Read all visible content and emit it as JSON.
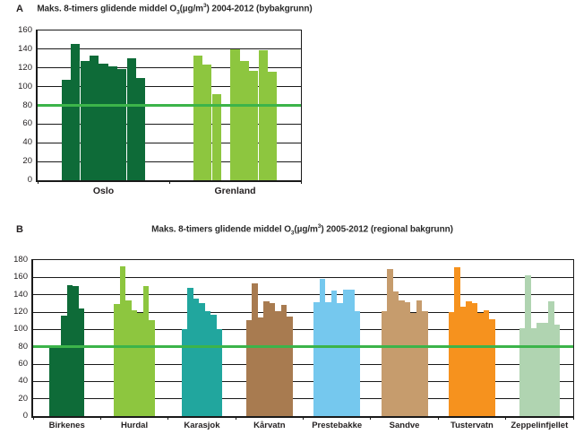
{
  "page": {
    "background": "#ffffff"
  },
  "style": {
    "threshold_color": "#3cb44a",
    "grid_color": "#1a1a1a",
    "text_color": "#231f20"
  },
  "chart_data": [
    {
      "type": "bar",
      "panel_label": "A",
      "title": "Maks. 8-timers glidende middel O3(µg/m3) 2004-2012 (bybakgrunn)",
      "title_parts": {
        "pre": "Maks. 8-timers glidende middel O",
        "sub": "3",
        "mid": "(µg/m",
        "sup": "3",
        "post": ") 2004-2012 (bybakgrunn)"
      },
      "ylim": [
        0,
        160
      ],
      "ytick_step": 20,
      "yticks": [
        0,
        20,
        40,
        60,
        80,
        100,
        120,
        140,
        160
      ],
      "threshold": 80,
      "grid": "horizontal",
      "legend": "none",
      "categories": [
        "Oslo",
        "Grenland"
      ],
      "groups": [
        {
          "name": "Oslo",
          "color": "#0e6b38",
          "values": [
            107,
            146,
            127,
            133,
            125,
            122,
            119,
            130,
            109
          ]
        },
        {
          "name": "Grenland",
          "color": "#8dc63f",
          "values": [
            133,
            124,
            92,
            null,
            140,
            127,
            117,
            139,
            116
          ]
        }
      ]
    },
    {
      "type": "bar",
      "panel_label": "B",
      "title": "Maks. 8-timers glidende middel O3(µg/m3) 2005-2012 (regional bakgrunn)",
      "title_parts": {
        "pre": "Maks. 8-timers glidende middel O",
        "sub": "3",
        "mid": "(µg/m",
        "sup": "3",
        "post": ") 2005-2012 (regional bakgrunn)"
      },
      "ylim": [
        0,
        180
      ],
      "ytick_step": 20,
      "yticks": [
        0,
        20,
        40,
        60,
        80,
        100,
        120,
        140,
        160,
        180
      ],
      "threshold": 80,
      "grid": "horizontal",
      "legend": "none",
      "categories": [
        "Birkenes",
        "Hurdal",
        "Karasjok",
        "Kårvatn",
        "Prestebakke",
        "Sandve",
        "Tustervatn",
        "Zeppelinfjellet"
      ],
      "groups": [
        {
          "name": "Birkenes",
          "color": "#0e6b38",
          "values": [
            80,
            81,
            116,
            151,
            150,
            124
          ]
        },
        {
          "name": "Hurdal",
          "color": "#8dc63f",
          "values": [
            129,
            173,
            133,
            122,
            119,
            150,
            111
          ]
        },
        {
          "name": "Karasjok",
          "color": "#21a69e",
          "values": [
            100,
            148,
            136,
            130,
            121,
            117,
            100
          ]
        },
        {
          "name": "Kårvatn",
          "color": "#a87b50",
          "values": [
            111,
            153,
            114,
            132,
            130,
            121,
            128,
            115
          ]
        },
        {
          "name": "Prestebakke",
          "color": "#75c8ee",
          "values": [
            131,
            158,
            131,
            145,
            130,
            146,
            146,
            121
          ]
        },
        {
          "name": "Sandve",
          "color": "#c69c6d",
          "values": [
            121,
            170,
            144,
            133,
            131,
            119,
            133,
            121
          ]
        },
        {
          "name": "Tustervatn",
          "color": "#f6921e",
          "values": [
            120,
            172,
            126,
            132,
            130,
            119,
            122,
            112
          ]
        },
        {
          "name": "Zeppelinfjellet",
          "color": "#b0d4b1",
          "values": [
            101,
            162,
            101,
            108,
            108,
            132,
            106
          ]
        }
      ]
    }
  ]
}
